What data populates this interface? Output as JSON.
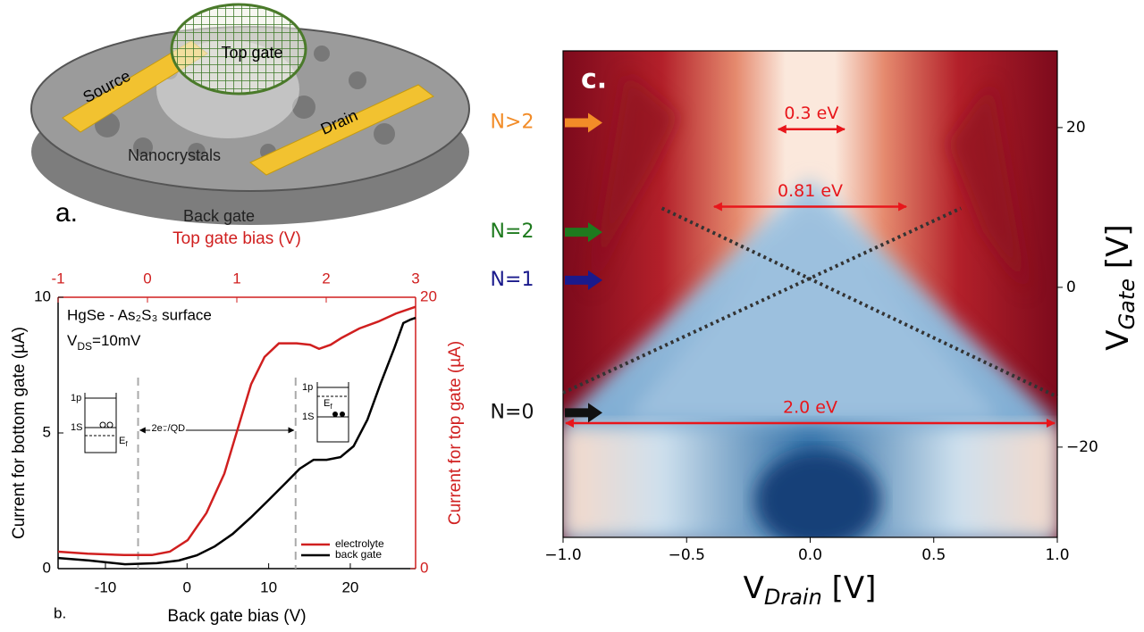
{
  "diagram": {
    "panel_label": "a.",
    "source": "Source",
    "top_gate": "Top gate",
    "drain": "Drain",
    "nanocrystals": "Nanocrystals",
    "back_gate": "Back gate"
  },
  "chart_data": [
    {
      "type": "line",
      "panel_label": "b.",
      "x_label": "Back gate bias (V)",
      "x2_label": "Top gate bias (V)",
      "y_label": "Current for bottom gate (µA)",
      "y2_label": "Current for top gate (µA)",
      "xlim": [
        -15.8,
        28
      ],
      "xticks": [
        -10,
        0,
        10,
        20
      ],
      "x2lim": [
        -1,
        3
      ],
      "x2ticks": [
        -1,
        0,
        1,
        2,
        3
      ],
      "ylim": [
        0,
        10
      ],
      "yticks": [
        0,
        5,
        10
      ],
      "y2lim": [
        0,
        20
      ],
      "y2ticks": [
        0,
        20
      ],
      "legend": "lower right",
      "series": [
        {
          "name": "electrolyte",
          "color": "#d01f1f",
          "axis": "y2",
          "x_axis": "x2",
          "x": [
            -1,
            -0.67,
            -0.26,
            0.05,
            0.25,
            0.45,
            0.66,
            0.86,
            1.01,
            1.16,
            1.31,
            1.47,
            1.67,
            1.82,
            1.92,
            2.05,
            2.17,
            2.37,
            2.58,
            2.78,
            3.0
          ],
          "values": [
            1.25,
            1.1,
            1.0,
            1.0,
            1.25,
            2.1,
            4.1,
            7.0,
            10.3,
            13.6,
            15.6,
            16.6,
            16.6,
            16.5,
            16.2,
            16.5,
            17.0,
            17.7,
            18.2,
            18.8,
            19.3
          ]
        },
        {
          "name": "back gate",
          "color": "#000000",
          "x": [
            -15.8,
            -12.0,
            -7.6,
            -3.7,
            -1.0,
            1.2,
            3.4,
            5.6,
            7.8,
            10.0,
            12.2,
            13.8,
            15.5,
            17.1,
            18.8,
            20.4,
            22.1,
            23.7,
            25.4,
            26.5,
            27.4,
            28
          ],
          "values": [
            0.39,
            0.3,
            0.16,
            0.2,
            0.3,
            0.49,
            0.82,
            1.28,
            1.88,
            2.53,
            3.19,
            3.68,
            4.01,
            4.01,
            4.11,
            4.51,
            5.49,
            6.81,
            8.13,
            9.05,
            9.18,
            9.24
          ]
        }
      ],
      "vlines": [
        -6,
        13.3
      ],
      "material": "HgSe - As₂S₃ surface",
      "vds": [
        "V",
        "DS",
        "=10mV"
      ],
      "arrow": {
        "text": "2e⁻/QD",
        "x": [
          -6,
          13.3
        ],
        "y": 5.1
      },
      "inset_labels": {
        "p": "1p",
        "s": "1S",
        "ef": "E",
        "ef_sub": "f"
      }
    },
    {
      "type": "heatmap",
      "panel_label": "c.",
      "x_label": [
        "V",
        "Drain",
        " [V]"
      ],
      "y_label": [
        "V",
        "Gate",
        " [V]"
      ],
      "xlim": [
        -1,
        1
      ],
      "xticks": [
        {
          "value": -1,
          "label": "−1.0"
        },
        {
          "value": -0.5,
          "label": "−0.5"
        },
        {
          "value": 0,
          "label": "0.0"
        },
        {
          "value": 0.5,
          "label": "0.5"
        },
        {
          "value": 1,
          "label": "1.0"
        }
      ],
      "ylim": [
        -31.3,
        29.6
      ],
      "yticks": [
        {
          "value": -20,
          "label": "−20"
        },
        0,
        20
      ],
      "gaps": [
        {
          "text": "0.3 eV",
          "x": [
            -0.14,
            0.15
          ],
          "y": 19.8
        },
        {
          "text": "0.81 eV",
          "x": [
            -0.4,
            0.4
          ],
          "y": 10.1
        },
        {
          "text": "2.0 eV",
          "x": [
            -1,
            1
          ],
          "y": -17.0
        }
      ],
      "guides": [
        {
          "x": [
            -0.6,
            1.0
          ],
          "y": [
            9.9,
            -13.7
          ]
        },
        {
          "x": [
            -1.0,
            0.61
          ],
          "y": [
            -13.2,
            9.9
          ]
        }
      ],
      "levels": [
        {
          "label": "N>2",
          "y": 20.6,
          "color": "#f28c28"
        },
        {
          "label": "N=2",
          "y": 6.9,
          "color": "#1e7a1e"
        },
        {
          "label": "N=1",
          "y": 0.9,
          "color": "#1a1a8c"
        },
        {
          "label": "N=0",
          "y": -15.7,
          "color": "#111111"
        }
      ]
    }
  ]
}
